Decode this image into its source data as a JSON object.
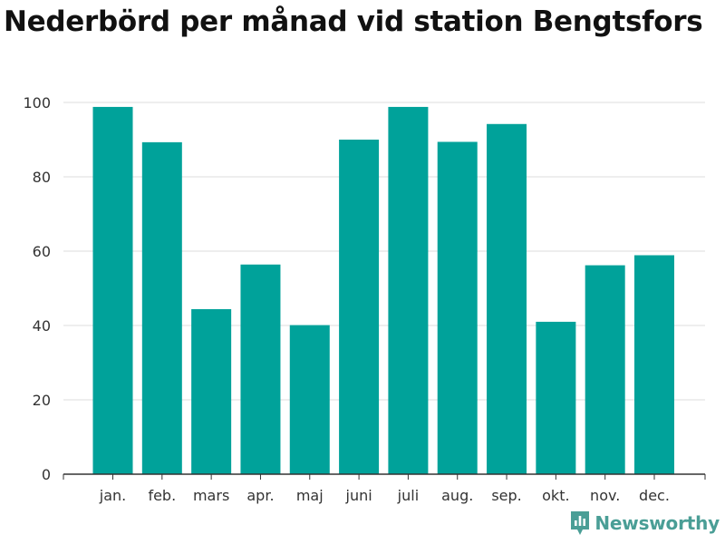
{
  "header": {
    "title": "Nederbörd per månad vid station Bengtsfors"
  },
  "brand": {
    "name": "Newsworthy",
    "logo_icon": "newsworthy-chart-icon",
    "color": "#4a9e96"
  },
  "colors": {
    "bar": "#00a29a"
  },
  "chart_data": {
    "type": "bar",
    "title": "Nederbörd per månad vid station Bengtsfors",
    "xlabel": "",
    "ylabel": "",
    "categories": [
      "jan.",
      "feb.",
      "mars",
      "apr.",
      "maj",
      "juni",
      "juli",
      "aug.",
      "sep.",
      "okt.",
      "nov.",
      "dec."
    ],
    "values": [
      98.8,
      89.3,
      44.4,
      56.4,
      40.1,
      90.0,
      98.8,
      89.4,
      94.2,
      41.0,
      56.2,
      58.9
    ],
    "ylim": [
      0,
      100
    ],
    "yticks": [
      0,
      20,
      40,
      60,
      80,
      100
    ],
    "grid": true,
    "legend": "none"
  }
}
